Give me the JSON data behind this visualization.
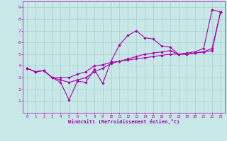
{
  "xlabel": "Windchill (Refroidissement éolien,°C)",
  "bg_color": "#c8e8e8",
  "line_color": "#aa00aa",
  "grid_color": "#aacccc",
  "xlim": [
    -0.5,
    23.5
  ],
  "ylim": [
    0,
    9.5
  ],
  "xticks": [
    0,
    1,
    2,
    3,
    4,
    5,
    6,
    7,
    8,
    9,
    10,
    11,
    12,
    13,
    14,
    15,
    16,
    17,
    18,
    19,
    20,
    21,
    22,
    23
  ],
  "yticks": [
    1,
    2,
    3,
    4,
    5,
    6,
    7,
    8,
    9
  ],
  "line1_x": [
    0,
    1,
    2,
    3,
    4,
    5,
    6,
    7,
    8,
    9,
    10,
    11,
    12,
    13,
    14,
    15,
    16,
    17,
    18,
    19,
    20,
    21,
    22,
    23
  ],
  "line1_y": [
    3.8,
    3.5,
    3.6,
    3.0,
    2.6,
    1.1,
    2.7,
    2.6,
    3.7,
    2.5,
    4.4,
    5.8,
    6.6,
    7.0,
    6.4,
    6.3,
    5.7,
    5.6,
    5.0,
    5.1,
    5.2,
    5.5,
    8.8,
    8.6
  ],
  "line2_x": [
    0,
    1,
    2,
    3,
    4,
    5,
    6,
    7,
    8,
    9,
    10,
    11,
    12,
    13,
    14,
    15,
    16,
    17,
    18,
    19,
    20,
    21,
    22,
    23
  ],
  "line2_y": [
    3.8,
    3.5,
    3.6,
    3.0,
    3.0,
    3.0,
    3.3,
    3.5,
    4.0,
    4.1,
    4.3,
    4.4,
    4.5,
    4.6,
    4.7,
    4.8,
    4.9,
    5.0,
    5.0,
    5.0,
    5.1,
    5.2,
    5.3,
    8.6
  ],
  "line3_x": [
    0,
    1,
    2,
    3,
    4,
    5,
    6,
    7,
    8,
    9,
    10,
    11,
    12,
    13,
    14,
    15,
    16,
    17,
    18,
    19,
    20,
    21,
    22,
    23
  ],
  "line3_y": [
    3.8,
    3.5,
    3.6,
    3.0,
    2.8,
    2.6,
    2.8,
    3.0,
    3.5,
    3.8,
    4.2,
    4.4,
    4.6,
    4.8,
    5.0,
    5.1,
    5.2,
    5.3,
    5.0,
    5.0,
    5.1,
    5.2,
    5.5,
    8.6
  ],
  "tick_fontsize": 4.0,
  "xlabel_fontsize": 5.0
}
